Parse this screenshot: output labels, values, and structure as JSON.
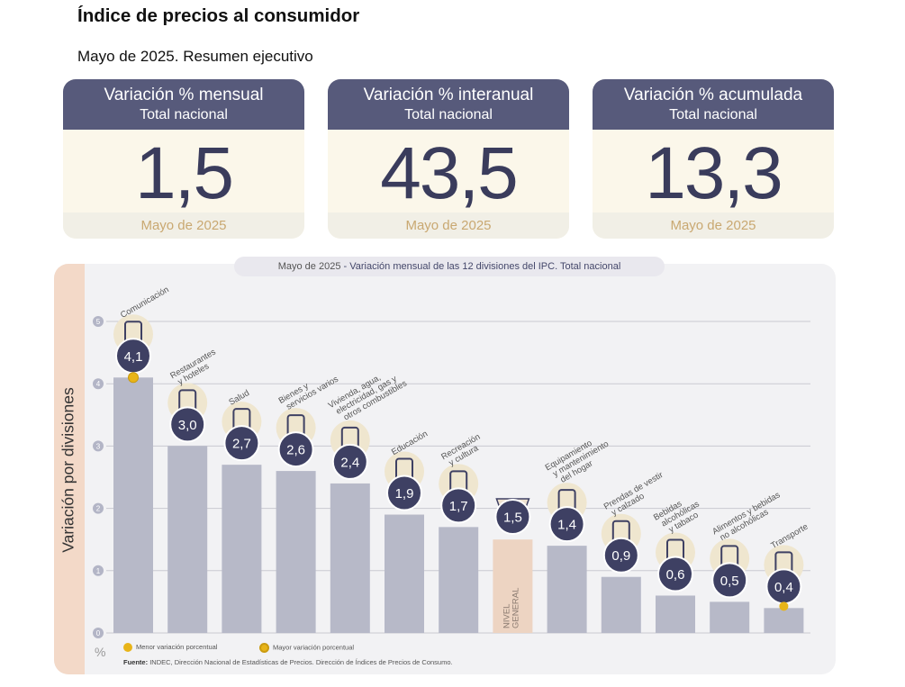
{
  "page": {
    "title": "Índice de precios al consumidor",
    "subtitle": "Mayo de 2025. Resumen ejecutivo"
  },
  "cards": [
    {
      "title": "Variación % mensual",
      "subtitle": "Total nacional",
      "value": "1,5",
      "period": "Mayo de 2025"
    },
    {
      "title": "Variación % interanual",
      "subtitle": "Total nacional",
      "value": "43,5",
      "period": "Mayo de 2025"
    },
    {
      "title": "Variación % acumulada",
      "subtitle": "Total nacional",
      "value": "13,3",
      "period": "Mayo de 2025"
    }
  ],
  "colors": {
    "header": "#575a7b",
    "bar": "#b7b9c8",
    "highlight_bar": "#edd4c2",
    "badge": "#3e4063",
    "marker": "#e8b418",
    "period": "#c9a871"
  },
  "chart_data": {
    "type": "bar",
    "title_period": "Mayo de 2025",
    "title_rest": "- Variación mensual de las 12 divisiones del IPC. Total nacional",
    "ylabel": "Variación por divisiones",
    "unit": "%",
    "ylim": [
      0,
      5
    ],
    "yticks": [
      "0",
      "1",
      "2",
      "3",
      "4",
      "5"
    ],
    "grid": true,
    "categories": [
      {
        "label_lines": [
          "Comunicación"
        ],
        "icon": "phone-icon"
      },
      {
        "label_lines": [
          "Restaurantes",
          "y hoteles"
        ],
        "icon": "plate-cutlery-icon"
      },
      {
        "label_lines": [
          "Salud"
        ],
        "icon": "first-aid-icon"
      },
      {
        "label_lines": [
          "Bienes y",
          "servicios varios"
        ],
        "icon": "comb-scissors-icon"
      },
      {
        "label_lines": [
          "Vivienda, agua,",
          "electricidad, gas y",
          "otros combustibles"
        ],
        "icon": "lightbulb-icon"
      },
      {
        "label_lines": [
          "Educación"
        ],
        "icon": "notebook-icon"
      },
      {
        "label_lines": [
          "Recreación",
          "y cultura"
        ],
        "icon": "beach-umbrella-icon"
      },
      {
        "label_lines": [
          "NIVEL",
          "GENERAL"
        ],
        "icon": "shopping-basket-icon"
      },
      {
        "label_lines": [
          "Equipamiento",
          "y mantenimiento",
          "del hogar"
        ],
        "icon": "air-conditioner-icon"
      },
      {
        "label_lines": [
          "Prendas de vestir",
          "y calzado"
        ],
        "icon": "tshirt-icon"
      },
      {
        "label_lines": [
          "Bebidas",
          "alcohólicas",
          "y tabaco"
        ],
        "icon": "wine-bottle-icon"
      },
      {
        "label_lines": [
          "Alimentos y bebidas",
          "no alcohólicas"
        ],
        "icon": "chicken-icon"
      },
      {
        "label_lines": [
          "Transporte"
        ],
        "icon": "bus-card-icon"
      }
    ],
    "values": [
      4.1,
      3.0,
      2.7,
      2.6,
      2.4,
      1.9,
      1.7,
      1.5,
      1.4,
      0.9,
      0.6,
      0.5,
      0.4
    ],
    "value_labels": [
      "4,1",
      "3,0",
      "2,7",
      "2,6",
      "2,4",
      "1,9",
      "1,7",
      "1,5",
      "1,4",
      "0,9",
      "0,6",
      "0,5",
      "0,4"
    ],
    "highlight_index": 7,
    "max_index": 0,
    "min_index": 12,
    "legend": {
      "min_label": "Menor variación porcentual",
      "max_label": "Mayor variación porcentual"
    },
    "source_label": "Fuente:",
    "source_text": "INDEC, Dirección Nacional de Estadísticas de Precios. Dirección de Índices de Precios de Consumo."
  }
}
